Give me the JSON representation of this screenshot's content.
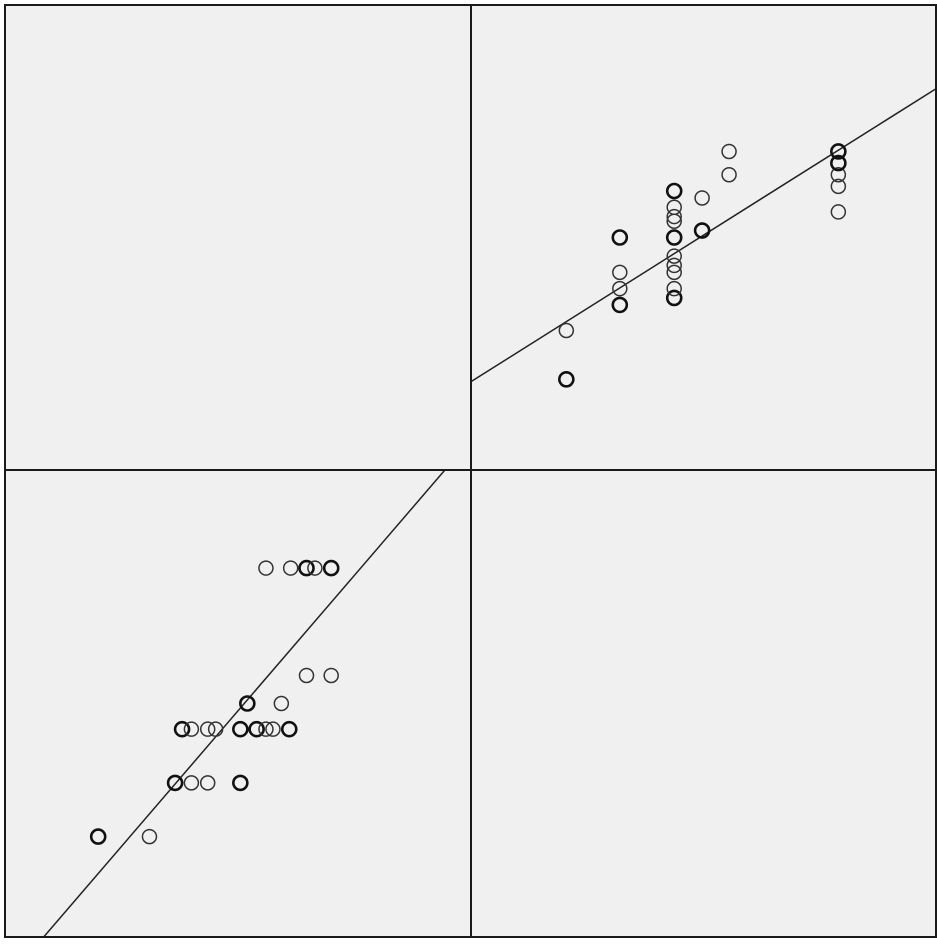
{
  "chart_data": {
    "type": "scatter",
    "layout": "scatterplot-matrix",
    "grid": false,
    "point_style": "open-circle",
    "colors": {
      "background": "#f0f0f0",
      "border": "#1a1a1a",
      "points": "#333333",
      "fit_line": "#222222"
    },
    "panels": [
      {
        "id": "top-left",
        "row": 0,
        "col": 0,
        "kind": "empty"
      },
      {
        "id": "top-right",
        "row": 0,
        "col": 1,
        "kind": "scatter",
        "xlim": [
          0,
          1
        ],
        "ylim": [
          0,
          1
        ],
        "fit_line": {
          "x": [
            0,
            1
          ],
          "y": [
            0.19,
            0.82
          ]
        },
        "points": [
          {
            "x": 0.205,
            "y": 0.195,
            "dup": true
          },
          {
            "x": 0.205,
            "y": 0.3
          },
          {
            "x": 0.32,
            "y": 0.355,
            "dup": true
          },
          {
            "x": 0.32,
            "y": 0.39
          },
          {
            "x": 0.32,
            "y": 0.425
          },
          {
            "x": 0.32,
            "y": 0.5,
            "dup": true
          },
          {
            "x": 0.437,
            "y": 0.37,
            "dup": true
          },
          {
            "x": 0.437,
            "y": 0.39
          },
          {
            "x": 0.437,
            "y": 0.425
          },
          {
            "x": 0.437,
            "y": 0.44
          },
          {
            "x": 0.437,
            "y": 0.46
          },
          {
            "x": 0.437,
            "y": 0.5,
            "dup": true
          },
          {
            "x": 0.437,
            "y": 0.535
          },
          {
            "x": 0.437,
            "y": 0.545
          },
          {
            "x": 0.437,
            "y": 0.565
          },
          {
            "x": 0.437,
            "y": 0.6,
            "dup": true
          },
          {
            "x": 0.497,
            "y": 0.515,
            "dup": true
          },
          {
            "x": 0.497,
            "y": 0.585
          },
          {
            "x": 0.555,
            "y": 0.635
          },
          {
            "x": 0.555,
            "y": 0.685
          },
          {
            "x": 0.79,
            "y": 0.555
          },
          {
            "x": 0.79,
            "y": 0.61
          },
          {
            "x": 0.79,
            "y": 0.635
          },
          {
            "x": 0.79,
            "y": 0.66,
            "dup": true
          },
          {
            "x": 0.79,
            "y": 0.685,
            "dup": true
          }
        ]
      },
      {
        "id": "bottom-left",
        "row": 1,
        "col": 0,
        "kind": "scatter",
        "xlim": [
          0,
          1
        ],
        "ylim": [
          0,
          1
        ],
        "fit_line": {
          "x": [
            0.083,
            0.944
          ],
          "y": [
            0.0,
            1.0
          ]
        },
        "points": [
          {
            "x": 0.2,
            "y": 0.215,
            "dup": true
          },
          {
            "x": 0.31,
            "y": 0.215
          },
          {
            "x": 0.365,
            "y": 0.33,
            "dup": true
          },
          {
            "x": 0.4,
            "y": 0.33
          },
          {
            "x": 0.435,
            "y": 0.33
          },
          {
            "x": 0.505,
            "y": 0.33,
            "dup": true
          },
          {
            "x": 0.38,
            "y": 0.445,
            "dup": true
          },
          {
            "x": 0.4,
            "y": 0.445
          },
          {
            "x": 0.435,
            "y": 0.445
          },
          {
            "x": 0.452,
            "y": 0.445
          },
          {
            "x": 0.505,
            "y": 0.445,
            "dup": true
          },
          {
            "x": 0.54,
            "y": 0.445,
            "dup": true
          },
          {
            "x": 0.56,
            "y": 0.445
          },
          {
            "x": 0.575,
            "y": 0.445
          },
          {
            "x": 0.61,
            "y": 0.445,
            "dup": true
          },
          {
            "x": 0.52,
            "y": 0.5,
            "dup": true
          },
          {
            "x": 0.593,
            "y": 0.5
          },
          {
            "x": 0.647,
            "y": 0.56
          },
          {
            "x": 0.7,
            "y": 0.56
          },
          {
            "x": 0.56,
            "y": 0.79
          },
          {
            "x": 0.613,
            "y": 0.79
          },
          {
            "x": 0.647,
            "y": 0.79,
            "dup": true
          },
          {
            "x": 0.665,
            "y": 0.79
          },
          {
            "x": 0.7,
            "y": 0.79,
            "dup": true
          }
        ]
      },
      {
        "id": "bottom-right",
        "row": 1,
        "col": 1,
        "kind": "empty"
      }
    ]
  }
}
